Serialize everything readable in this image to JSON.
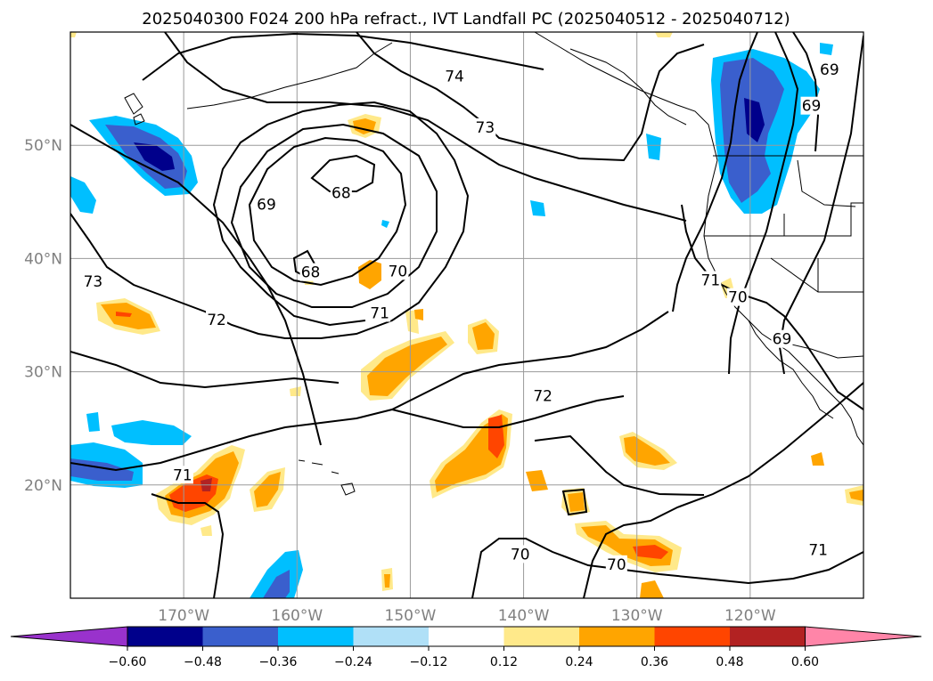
{
  "figure": {
    "title": "2025040300 F024 200 hPa refract., IVT Landfall PC (2025040512 - 2025040712)"
  },
  "map": {
    "lon_range": [
      -180,
      -110
    ],
    "lat_range": [
      10,
      60
    ],
    "grid": true,
    "lon_ticks": [
      {
        "lon": -170,
        "label": "170°W"
      },
      {
        "lon": -160,
        "label": "160°W"
      },
      {
        "lon": -150,
        "label": "150°W"
      },
      {
        "lon": -140,
        "label": "140°W"
      },
      {
        "lon": -130,
        "label": "130°W"
      },
      {
        "lon": -120,
        "label": "120°W"
      }
    ],
    "lat_ticks": [
      {
        "lat": 50,
        "label": "50°N"
      },
      {
        "lat": 40,
        "label": "40°N"
      },
      {
        "lat": 30,
        "label": "30°N"
      },
      {
        "lat": 20,
        "label": "20°N"
      }
    ],
    "contour_labels": [
      {
        "text": "74",
        "lon": -146.1,
        "lat": 56.1
      },
      {
        "text": "73",
        "lon": -143.4,
        "lat": 51.6
      },
      {
        "text": "69",
        "lon": -113.0,
        "lat": 56.7
      },
      {
        "text": "69",
        "lon": -114.6,
        "lat": 53.5
      },
      {
        "text": "68",
        "lon": -156.1,
        "lat": 45.8
      },
      {
        "text": "69",
        "lon": -162.7,
        "lat": 44.8
      },
      {
        "text": "73",
        "lon": -178.0,
        "lat": 38.0
      },
      {
        "text": "68",
        "lon": -158.8,
        "lat": 38.8
      },
      {
        "text": "70",
        "lon": -151.1,
        "lat": 38.9
      },
      {
        "text": "71",
        "lon": -152.7,
        "lat": 35.2
      },
      {
        "text": "72",
        "lon": -167.1,
        "lat": 34.6
      },
      {
        "text": "72",
        "lon": -138.3,
        "lat": 27.9
      },
      {
        "text": "71",
        "lon": -123.5,
        "lat": 38.1
      },
      {
        "text": "70",
        "lon": -121.1,
        "lat": 36.6
      },
      {
        "text": "69",
        "lon": -117.2,
        "lat": 32.9
      },
      {
        "text": "71",
        "lon": -170.1,
        "lat": 20.9
      },
      {
        "text": "70",
        "lon": -140.3,
        "lat": 13.9
      },
      {
        "text": "70",
        "lon": -131.8,
        "lat": 13.0
      },
      {
        "text": "71",
        "lon": -114.0,
        "lat": 14.3
      }
    ],
    "fill_colors": {
      "neg_weak": "#add8f7",
      "neg_mid": "#00bfff",
      "neg_strong": "#3f5fcf",
      "neg_max": "#00008b",
      "pos_weak": "#ffe98a",
      "pos_mid": "#ffa500",
      "pos_strong": "#ff4500",
      "pos_max": "#b22222"
    }
  },
  "colorbar": {
    "colors": [
      "#9932cc",
      "#00008b",
      "#3a5fcd",
      "#00bfff",
      "#b0e0f7",
      "#ffffff",
      "#ffe98a",
      "#ffa500",
      "#ff4500",
      "#b22222",
      "#ff85a8"
    ],
    "ticks": [
      "−0.60",
      "−0.48",
      "−0.36",
      "−0.24",
      "−0.12",
      "0.12",
      "0.24",
      "0.36",
      "0.48",
      "0.60"
    ]
  }
}
